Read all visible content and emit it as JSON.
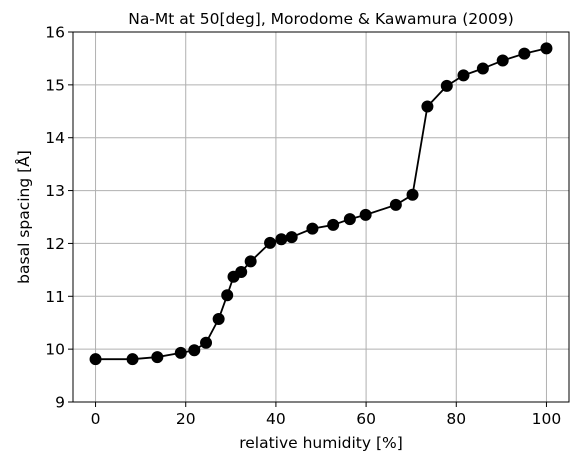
{
  "chart_data": {
    "type": "line",
    "title": "Na-Mt at 50[deg], Morodome & Kawamura (2009)",
    "xlabel": "relative humidity [%]",
    "ylabel": "basal spacing [Å]",
    "xlim": [
      -5,
      105
    ],
    "ylim": [
      9,
      16
    ],
    "xticks": [
      0,
      20,
      40,
      60,
      80,
      100
    ],
    "yticks": [
      9,
      10,
      11,
      12,
      13,
      14,
      15,
      16
    ],
    "grid": true,
    "series": [
      {
        "color": "#000000",
        "marker": "circle",
        "points": [
          {
            "x": 0,
            "y": 9.81
          },
          {
            "x": 8.2,
            "y": 9.81
          },
          {
            "x": 13.7,
            "y": 9.85
          },
          {
            "x": 18.9,
            "y": 9.93
          },
          {
            "x": 21.9,
            "y": 9.98
          },
          {
            "x": 24.5,
            "y": 10.12
          },
          {
            "x": 27.3,
            "y": 10.57
          },
          {
            "x": 29.2,
            "y": 11.02
          },
          {
            "x": 30.6,
            "y": 11.37
          },
          {
            "x": 32.3,
            "y": 11.46
          },
          {
            "x": 34.4,
            "y": 11.66
          },
          {
            "x": 38.7,
            "y": 12.01
          },
          {
            "x": 41.2,
            "y": 12.08
          },
          {
            "x": 43.5,
            "y": 12.12
          },
          {
            "x": 48.1,
            "y": 12.28
          },
          {
            "x": 52.7,
            "y": 12.35
          },
          {
            "x": 56.4,
            "y": 12.46
          },
          {
            "x": 59.9,
            "y": 12.54
          },
          {
            "x": 66.6,
            "y": 12.73
          },
          {
            "x": 70.3,
            "y": 12.92
          },
          {
            "x": 73.6,
            "y": 14.59
          },
          {
            "x": 77.9,
            "y": 14.98
          },
          {
            "x": 81.6,
            "y": 15.18
          },
          {
            "x": 85.9,
            "y": 15.31
          },
          {
            "x": 90.3,
            "y": 15.46
          },
          {
            "x": 95.1,
            "y": 15.59
          },
          {
            "x": 100,
            "y": 15.69
          }
        ]
      }
    ]
  }
}
